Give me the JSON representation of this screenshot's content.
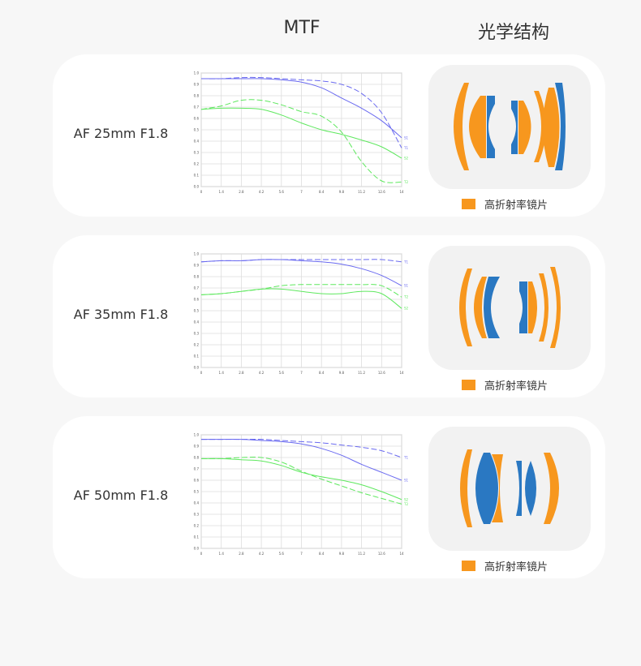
{
  "headers": {
    "mtf": "MTF",
    "structure": "光学结构"
  },
  "colors": {
    "high_index": "#f7971e",
    "standard": "#2a78c2",
    "sagittal_1": "#6a6af0",
    "green": "#5ee85e"
  },
  "legend_label": "高折射率镜片",
  "lenses": [
    {
      "name": "AF 25mm F1.8"
    },
    {
      "name": "AF 35mm F1.8"
    },
    {
      "name": "AF 50mm F1.8"
    }
  ],
  "chart_data": [
    {
      "type": "line",
      "x": [
        0,
        1.4,
        2.8,
        4.2,
        5.6,
        7,
        8.4,
        9.8,
        11.2,
        12.6,
        14
      ],
      "xticks": [
        "0",
        "1.4",
        "2.8",
        "4.2",
        "5.6",
        "7",
        "8.4",
        "9.8",
        "11.2",
        "12.6",
        "14"
      ],
      "yticks": [
        "0.0",
        "0.1",
        "0.2",
        "0.3",
        "0.4",
        "0.5",
        "0.6",
        "0.7",
        "0.8",
        "0.9",
        "1.0"
      ],
      "xlim": [
        0,
        14
      ],
      "ylim": [
        0,
        1
      ],
      "grid": true,
      "series": [
        {
          "name": "S1",
          "color": "#6a6af0",
          "dash": false,
          "values": [
            0.95,
            0.95,
            0.95,
            0.95,
            0.94,
            0.92,
            0.87,
            0.78,
            0.69,
            0.58,
            0.43
          ]
        },
        {
          "name": "T1",
          "color": "#6a6af0",
          "dash": true,
          "values": [
            0.95,
            0.95,
            0.96,
            0.96,
            0.95,
            0.94,
            0.93,
            0.9,
            0.82,
            0.65,
            0.34
          ]
        },
        {
          "name": "S2",
          "color": "#5ee85e",
          "dash": false,
          "values": [
            0.68,
            0.69,
            0.69,
            0.68,
            0.63,
            0.56,
            0.5,
            0.46,
            0.41,
            0.35,
            0.25
          ]
        },
        {
          "name": "T2",
          "color": "#5ee85e",
          "dash": true,
          "values": [
            0.68,
            0.71,
            0.76,
            0.76,
            0.72,
            0.66,
            0.62,
            0.48,
            0.22,
            0.05,
            0.04
          ]
        }
      ]
    },
    {
      "type": "line",
      "x": [
        0,
        1.4,
        2.8,
        4.2,
        5.6,
        7,
        8.4,
        9.8,
        11.2,
        12.6,
        14
      ],
      "xticks": [
        "0",
        "1.4",
        "2.8",
        "4.2",
        "5.6",
        "7",
        "8.4",
        "9.8",
        "11.2",
        "12.6",
        "14"
      ],
      "yticks": [
        "0.0",
        "0.1",
        "0.2",
        "0.3",
        "0.4",
        "0.5",
        "0.6",
        "0.7",
        "0.8",
        "0.9",
        "1.0"
      ],
      "xlim": [
        0,
        14
      ],
      "ylim": [
        0,
        1
      ],
      "grid": true,
      "series": [
        {
          "name": "T1",
          "color": "#6a6af0",
          "dash": true,
          "values": [
            0.93,
            0.94,
            0.94,
            0.95,
            0.95,
            0.95,
            0.95,
            0.95,
            0.95,
            0.95,
            0.93
          ]
        },
        {
          "name": "S1",
          "color": "#6a6af0",
          "dash": false,
          "values": [
            0.93,
            0.94,
            0.94,
            0.95,
            0.95,
            0.94,
            0.93,
            0.91,
            0.87,
            0.81,
            0.72
          ]
        },
        {
          "name": "T2",
          "color": "#5ee85e",
          "dash": true,
          "values": [
            0.64,
            0.65,
            0.67,
            0.69,
            0.72,
            0.73,
            0.73,
            0.73,
            0.73,
            0.72,
            0.62
          ]
        },
        {
          "name": "S2",
          "color": "#5ee85e",
          "dash": false,
          "values": [
            0.64,
            0.65,
            0.67,
            0.69,
            0.69,
            0.67,
            0.65,
            0.65,
            0.67,
            0.65,
            0.52
          ]
        }
      ]
    },
    {
      "type": "line",
      "x": [
        0,
        1.4,
        2.8,
        4.2,
        5.6,
        7,
        8.4,
        9.8,
        11.2,
        12.6,
        14
      ],
      "xticks": [
        "0",
        "1.4",
        "2.8",
        "4.2",
        "5.6",
        "7",
        "8.4",
        "9.8",
        "11.2",
        "12.6",
        "14"
      ],
      "yticks": [
        "0.0",
        "0.1",
        "0.2",
        "0.3",
        "0.4",
        "0.5",
        "0.6",
        "0.7",
        "0.8",
        "0.9",
        "1.0"
      ],
      "xlim": [
        0,
        14
      ],
      "ylim": [
        0,
        1
      ],
      "grid": true,
      "series": [
        {
          "name": "T1",
          "color": "#6a6af0",
          "dash": true,
          "values": [
            0.96,
            0.96,
            0.96,
            0.96,
            0.95,
            0.94,
            0.93,
            0.91,
            0.89,
            0.86,
            0.8
          ]
        },
        {
          "name": "S1",
          "color": "#6a6af0",
          "dash": false,
          "values": [
            0.96,
            0.96,
            0.96,
            0.95,
            0.94,
            0.92,
            0.88,
            0.82,
            0.74,
            0.67,
            0.6
          ]
        },
        {
          "name": "S2",
          "color": "#5ee85e",
          "dash": false,
          "values": [
            0.79,
            0.79,
            0.78,
            0.77,
            0.73,
            0.67,
            0.63,
            0.6,
            0.56,
            0.5,
            0.43
          ]
        },
        {
          "name": "T2",
          "color": "#5ee85e",
          "dash": true,
          "values": [
            0.79,
            0.79,
            0.8,
            0.8,
            0.76,
            0.68,
            0.61,
            0.55,
            0.49,
            0.44,
            0.39
          ]
        }
      ]
    }
  ]
}
